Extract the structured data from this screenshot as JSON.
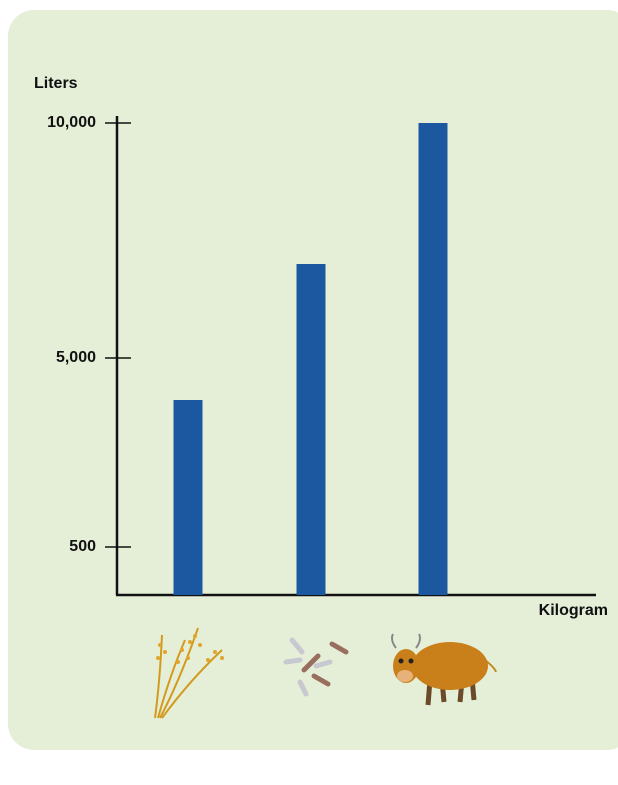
{
  "chart_data": {
    "type": "bar",
    "y_label": "Liters",
    "x_label": "Kilogram",
    "categories": [
      null,
      null,
      null
    ],
    "values": [
      4000,
      7000,
      10000
    ],
    "color": "#1c58a0",
    "ylim": [
      0,
      10000
    ],
    "yticks": [
      500,
      {
        "value": 5000,
        "label": "5,000"
      },
      {
        "value": 10000,
        "label": "10,000"
      }
    ]
  }
}
